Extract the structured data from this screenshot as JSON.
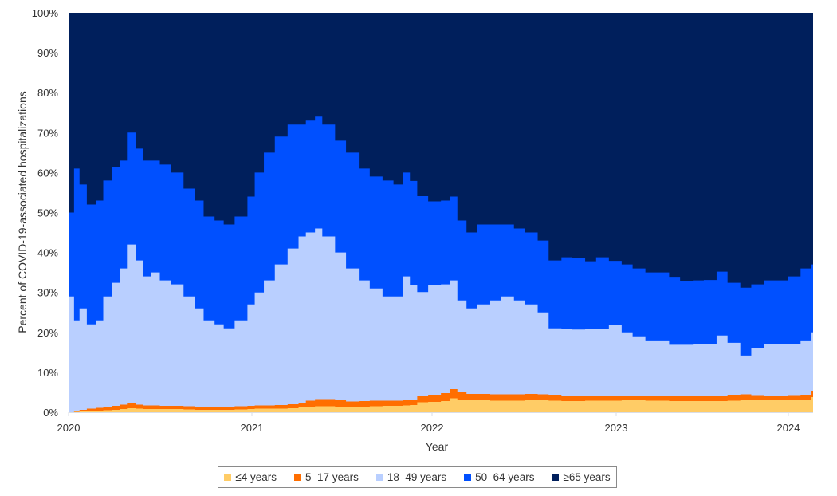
{
  "chart_data": {
    "type": "area",
    "stacked": true,
    "normalized_percent": true,
    "title": "",
    "xlabel": "Year",
    "ylabel": "Percent of COVID-19-associated hospitalizations",
    "ylim": [
      0,
      100
    ],
    "y_ticks": [
      "0%",
      "10%",
      "20%",
      "30%",
      "40%",
      "50%",
      "60%",
      "70%",
      "80%",
      "90%",
      "100%"
    ],
    "x_ticks": [
      "2020",
      "2021",
      "2022",
      "2023",
      "2024"
    ],
    "grid": false,
    "legend_position": "bottom",
    "x_range_years": [
      2020.0,
      2024.08
    ],
    "x": [
      2020.0,
      2020.03,
      2020.06,
      2020.1,
      2020.15,
      2020.19,
      2020.24,
      2020.28,
      2020.32,
      2020.37,
      2020.41,
      2020.45,
      2020.5,
      2020.56,
      2020.63,
      2020.69,
      2020.74,
      2020.8,
      2020.85,
      2020.91,
      2020.98,
      2021.02,
      2021.07,
      2021.13,
      2021.2,
      2021.26,
      2021.3,
      2021.35,
      2021.39,
      2021.46,
      2021.52,
      2021.59,
      2021.65,
      2021.72,
      2021.78,
      2021.83,
      2021.87,
      2021.91,
      2021.97,
      2022.04,
      2022.09,
      2022.13,
      2022.18,
      2022.24,
      2022.31,
      2022.37,
      2022.44,
      2022.5,
      2022.57,
      2022.63,
      2022.7,
      2022.76,
      2022.83,
      2022.89,
      2022.96,
      2023.03,
      2023.09,
      2023.16,
      2023.22,
      2023.29,
      2023.35,
      2023.42,
      2023.48,
      2023.55,
      2023.61,
      2023.68,
      2023.74,
      2023.81,
      2023.87,
      2023.94,
      2024.01,
      2024.07
    ],
    "series": [
      {
        "name": "≤4 years",
        "color": "#FFCC66",
        "values": [
          0.0,
          0.1,
          0.2,
          0.3,
          0.4,
          0.5,
          0.6,
          0.8,
          1.0,
          0.9,
          0.8,
          0.8,
          0.8,
          0.8,
          0.7,
          0.6,
          0.6,
          0.6,
          0.6,
          0.7,
          0.8,
          0.9,
          0.9,
          0.9,
          1.0,
          1.2,
          1.4,
          1.5,
          1.5,
          1.4,
          1.3,
          1.4,
          1.5,
          1.6,
          1.6,
          1.7,
          1.8,
          2.5,
          2.6,
          2.8,
          3.5,
          3.2,
          3.0,
          3.0,
          2.9,
          2.9,
          2.9,
          3.0,
          3.0,
          2.9,
          2.8,
          2.8,
          2.9,
          2.9,
          2.9,
          3.0,
          3.0,
          2.9,
          2.9,
          2.8,
          2.8,
          2.8,
          2.8,
          2.8,
          2.9,
          3.0,
          3.0,
          3.0,
          3.0,
          3.1,
          3.2,
          3.8
        ]
      },
      {
        "name": "5–17 years",
        "color": "#FF6E00",
        "values": [
          0.0,
          0.2,
          0.4,
          0.6,
          0.7,
          0.8,
          1.0,
          1.1,
          1.2,
          1.0,
          0.9,
          0.9,
          0.8,
          0.8,
          0.8,
          0.8,
          0.7,
          0.7,
          0.7,
          0.8,
          0.8,
          0.8,
          0.8,
          0.9,
          1.0,
          1.2,
          1.5,
          1.8,
          1.8,
          1.6,
          1.4,
          1.4,
          1.4,
          1.3,
          1.3,
          1.3,
          1.2,
          1.6,
          1.8,
          2.0,
          2.3,
          1.8,
          1.6,
          1.6,
          1.6,
          1.6,
          1.6,
          1.6,
          1.5,
          1.5,
          1.4,
          1.3,
          1.3,
          1.3,
          1.2,
          1.2,
          1.2,
          1.2,
          1.2,
          1.2,
          1.2,
          1.2,
          1.3,
          1.4,
          1.5,
          1.5,
          1.3,
          1.2,
          1.2,
          1.2,
          1.2,
          1.6
        ]
      },
      {
        "name": "18–49 years",
        "color": "#B9CFFF",
        "values": [
          29.0,
          22.7,
          25.4,
          21.1,
          21.9,
          27.7,
          30.8,
          34.1,
          39.8,
          36.1,
          32.3,
          33.3,
          31.4,
          30.4,
          27.5,
          24.6,
          21.7,
          20.7,
          19.7,
          21.5,
          25.4,
          28.3,
          31.3,
          35.2,
          39.0,
          41.6,
          42.1,
          42.7,
          40.7,
          37.0,
          33.3,
          30.2,
          28.1,
          26.1,
          26.1,
          31.0,
          28.9,
          26.0,
          27.4,
          27.2,
          27.2,
          23.0,
          21.4,
          22.4,
          23.5,
          24.5,
          23.5,
          22.4,
          20.5,
          16.6,
          16.6,
          16.6,
          16.6,
          16.6,
          17.8,
          15.8,
          14.8,
          13.9,
          13.9,
          12.9,
          12.9,
          13.0,
          13.0,
          15.0,
          13.0,
          9.7,
          11.7,
          12.8,
          12.8,
          12.7,
          13.6,
          14.6
        ]
      },
      {
        "name": "50–64 years",
        "color": "#0050FF",
        "values": [
          21.0,
          38.0,
          31.0,
          30.0,
          30.0,
          29.0,
          29.0,
          27.0,
          28.0,
          28.0,
          29.0,
          28.0,
          29.0,
          28.0,
          27.0,
          27.0,
          26.0,
          26.0,
          26.0,
          26.0,
          27.0,
          30.0,
          32.0,
          32.0,
          31.0,
          28.0,
          28.0,
          28.0,
          28.0,
          28.0,
          29.0,
          28.0,
          28.0,
          29.0,
          28.0,
          26.0,
          26.0,
          24.0,
          21.0,
          21.0,
          21.0,
          20.0,
          19.0,
          20.0,
          19.0,
          18.0,
          18.0,
          18.0,
          18.0,
          17.0,
          18.0,
          18.0,
          17.0,
          18.0,
          16.0,
          17.0,
          17.0,
          17.0,
          17.0,
          17.0,
          16.0,
          16.0,
          16.0,
          16.0,
          15.0,
          17.0,
          16.0,
          16.0,
          16.0,
          17.0,
          18.0,
          17.0
        ]
      },
      {
        "name": "≥65 years",
        "color": "#001F5C",
        "values": [
          50.0,
          39.0,
          43.0,
          48.0,
          47.0,
          42.0,
          39.0,
          37.0,
          30.0,
          34.0,
          37.0,
          37.0,
          38.0,
          40.0,
          44.0,
          47.0,
          51.0,
          52.0,
          53.0,
          51.0,
          46.0,
          40.0,
          35.0,
          31.0,
          28.0,
          28.0,
          27.0,
          26.0,
          28.0,
          32.0,
          35.0,
          39.0,
          41.0,
          42.0,
          43.0,
          39.0,
          42.0,
          46.0,
          47.0,
          47.0,
          46.0,
          52.0,
          55.0,
          53.0,
          53.0,
          53.0,
          54.0,
          55.0,
          57.0,
          62.0,
          61.0,
          61.0,
          62.0,
          61.0,
          63.0,
          63.0,
          64.0,
          65.0,
          65.0,
          66.0,
          67.0,
          67.0,
          67.0,
          65.0,
          68.0,
          69.0,
          68.0,
          67.0,
          67.0,
          66.0,
          64.0,
          63.0
        ]
      }
    ]
  },
  "axes": {
    "y_title": "Percent of COVID-19-associated hospitalizations",
    "x_title": "Year"
  },
  "legend": {
    "items": [
      {
        "label": "≤4 years",
        "color": "#FFCC66"
      },
      {
        "label": "5–17 years",
        "color": "#FF6E00"
      },
      {
        "label": "18–49 years",
        "color": "#B9CFFF"
      },
      {
        "label": "50–64 years",
        "color": "#0050FF"
      },
      {
        "label": "≥65 years",
        "color": "#001F5C"
      }
    ]
  }
}
